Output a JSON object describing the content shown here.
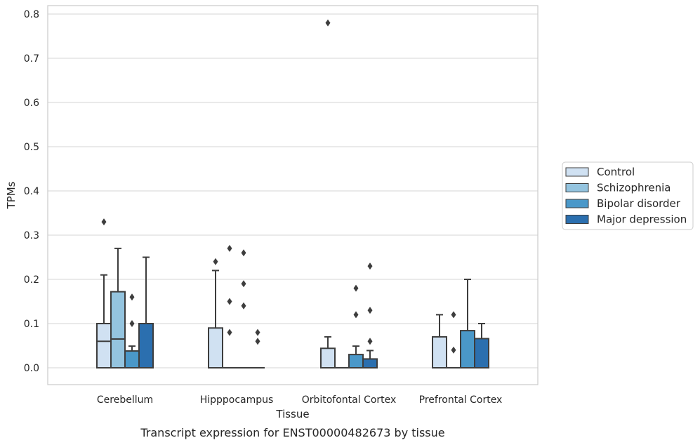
{
  "caption": "Transcript expression for ENST00000482673 by tissue",
  "chart_data": {
    "type": "box",
    "xlabel": "Tissue",
    "ylabel": "TPMs",
    "ylim": [
      -0.04,
      0.82
    ],
    "yticks": [
      0.0,
      0.1,
      0.2,
      0.3,
      0.4,
      0.5,
      0.6,
      0.7,
      0.8
    ],
    "ytick_labels": [
      "0.0",
      "0.1",
      "0.2",
      "0.3",
      "0.4",
      "0.5",
      "0.6",
      "0.7",
      "0.8"
    ],
    "grid": "horizontal",
    "legend_position": "right",
    "categories": [
      "Cerebellum",
      "Hipppocampus",
      "Orbitofontal Cortex",
      "Prefrontal Cortex"
    ],
    "series": [
      {
        "name": "Control",
        "color": "#d0e1f2",
        "boxes": [
          {
            "q1": 0.0,
            "median": 0.06,
            "q3": 0.1,
            "whisker_low": 0.0,
            "whisker_high": 0.21,
            "outliers": [
              0.33
            ]
          },
          {
            "q1": 0.0,
            "median": 0.0,
            "q3": 0.09,
            "whisker_low": 0.0,
            "whisker_high": 0.22,
            "outliers": [
              0.24
            ]
          },
          {
            "q1": 0.0,
            "median": 0.0,
            "q3": 0.044,
            "whisker_low": 0.0,
            "whisker_high": 0.07,
            "outliers": [
              0.78
            ]
          },
          {
            "q1": 0.0,
            "median": 0.0,
            "q3": 0.07,
            "whisker_low": 0.0,
            "whisker_high": 0.12,
            "outliers": []
          }
        ]
      },
      {
        "name": "Schizophrenia",
        "color": "#94c4df",
        "boxes": [
          {
            "q1": 0.0,
            "median": 0.065,
            "q3": 0.172,
            "whisker_low": 0.0,
            "whisker_high": 0.27,
            "outliers": []
          },
          {
            "q1": 0.0,
            "median": 0.0,
            "q3": 0.0,
            "whisker_low": 0.0,
            "whisker_high": 0.0,
            "outliers": [
              0.27,
              0.15,
              0.08
            ]
          },
          {
            "q1": 0.0,
            "median": 0.0,
            "q3": 0.0,
            "whisker_low": 0.0,
            "whisker_high": 0.0,
            "outliers": []
          },
          {
            "q1": 0.0,
            "median": 0.0,
            "q3": 0.0,
            "whisker_low": 0.0,
            "whisker_high": 0.0,
            "outliers": [
              0.12,
              0.04
            ]
          }
        ]
      },
      {
        "name": "Bipolar disorder",
        "color": "#4a98c9",
        "boxes": [
          {
            "q1": 0.0,
            "median": 0.0,
            "q3": 0.038,
            "whisker_low": 0.0,
            "whisker_high": 0.049,
            "outliers": [
              0.16,
              0.1
            ]
          },
          {
            "q1": 0.0,
            "median": 0.0,
            "q3": 0.0,
            "whisker_low": 0.0,
            "whisker_high": 0.0,
            "outliers": [
              0.26,
              0.19,
              0.14
            ]
          },
          {
            "q1": 0.0,
            "median": 0.0,
            "q3": 0.03,
            "whisker_low": 0.0,
            "whisker_high": 0.049,
            "outliers": [
              0.18,
              0.12
            ]
          },
          {
            "q1": 0.0,
            "median": 0.0,
            "q3": 0.084,
            "whisker_low": 0.0,
            "whisker_high": 0.2,
            "outliers": []
          }
        ]
      },
      {
        "name": "Major depression",
        "color": "#2b6faf",
        "boxes": [
          {
            "q1": 0.0,
            "median": 0.0,
            "q3": 0.1,
            "whisker_low": 0.0,
            "whisker_high": 0.25,
            "outliers": []
          },
          {
            "q1": 0.0,
            "median": 0.0,
            "q3": 0.0,
            "whisker_low": 0.0,
            "whisker_high": 0.0,
            "outliers": [
              0.08,
              0.06
            ]
          },
          {
            "q1": 0.0,
            "median": 0.0,
            "q3": 0.02,
            "whisker_low": 0.0,
            "whisker_high": 0.039,
            "outliers": [
              0.23,
              0.13,
              0.06
            ]
          },
          {
            "q1": 0.0,
            "median": 0.0,
            "q3": 0.066,
            "whisker_low": 0.0,
            "whisker_high": 0.1,
            "outliers": []
          }
        ]
      }
    ]
  }
}
